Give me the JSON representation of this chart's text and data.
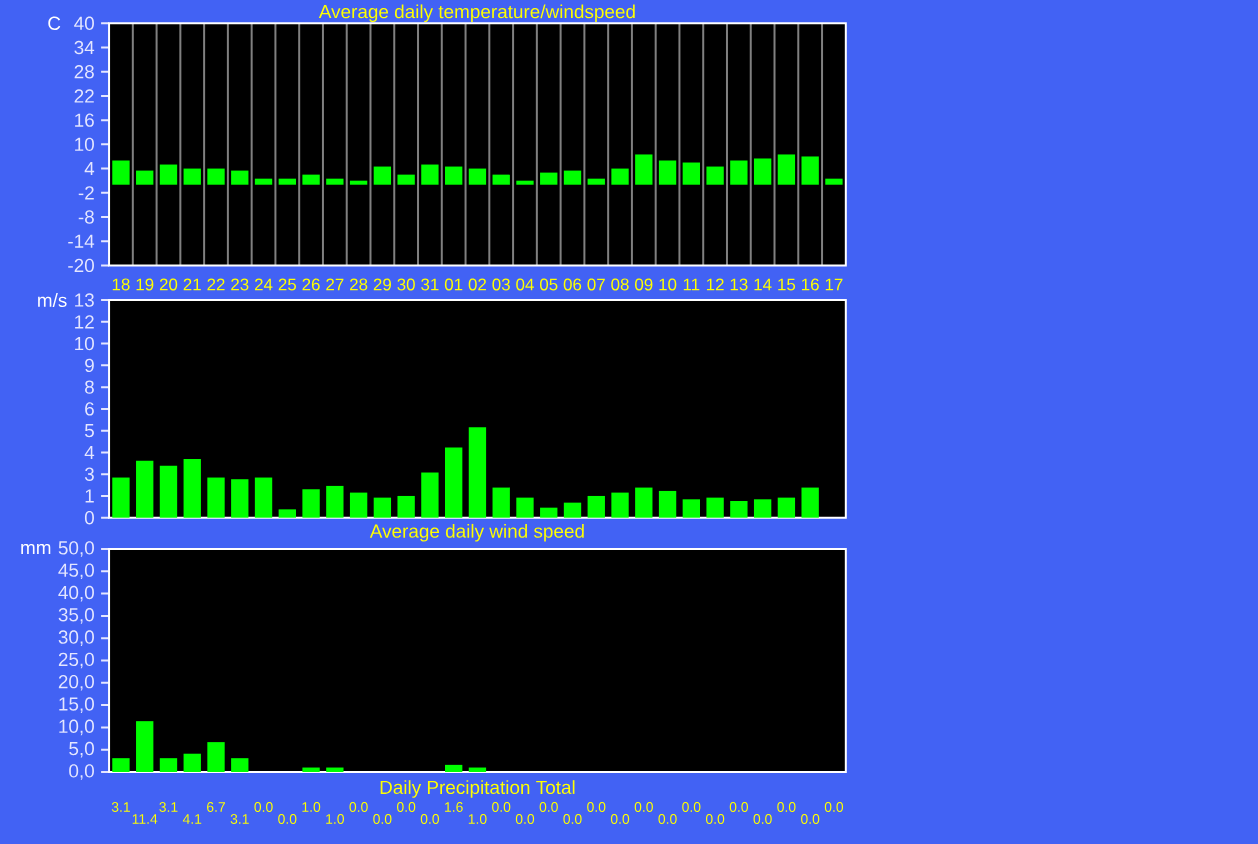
{
  "chart_data": [
    {
      "type": "bar",
      "title": "Average daily temperature/windspeed",
      "ylabel": "C",
      "categories": [
        "18",
        "19",
        "20",
        "21",
        "22",
        "23",
        "24",
        "25",
        "26",
        "27",
        "28",
        "29",
        "30",
        "31",
        "01",
        "02",
        "03",
        "04",
        "05",
        "06",
        "07",
        "08",
        "09",
        "10",
        "11",
        "12",
        "13",
        "14",
        "15",
        "16",
        "17"
      ],
      "values": [
        6.0,
        3.5,
        5.0,
        4.0,
        4.0,
        3.5,
        1.5,
        1.5,
        2.5,
        1.5,
        1.0,
        4.5,
        2.5,
        5.0,
        4.5,
        4.0,
        2.5,
        1.0,
        3.0,
        3.5,
        1.5,
        4.0,
        7.5,
        6.0,
        5.5,
        4.5,
        6.0,
        6.5,
        7.5,
        7.0,
        1.5
      ],
      "color": "#00ff00",
      "ylim": [
        -20,
        40
      ],
      "yticks": [
        -20,
        -14,
        -8,
        -2,
        4,
        10,
        16,
        22,
        28,
        34,
        40
      ],
      "grid": "x"
    },
    {
      "type": "bar",
      "title": "Average daily wind speed",
      "ylabel": "m/s",
      "categories": [
        "18",
        "19",
        "20",
        "21",
        "22",
        "23",
        "24",
        "25",
        "26",
        "27",
        "28",
        "29",
        "30",
        "31",
        "01",
        "02",
        "03",
        "04",
        "05",
        "06",
        "07",
        "08",
        "09",
        "10",
        "11",
        "12",
        "13",
        "14",
        "15",
        "16",
        "17"
      ],
      "values": [
        2.4,
        3.4,
        3.1,
        3.5,
        2.4,
        2.3,
        2.4,
        0.5,
        1.7,
        1.9,
        1.5,
        1.2,
        1.3,
        2.7,
        4.2,
        5.4,
        1.8,
        1.2,
        0.6,
        0.9,
        1.3,
        1.5,
        1.8,
        1.6,
        1.1,
        1.2,
        1.0,
        1.1,
        1.2,
        1.8,
        0
      ],
      "color": "#00ff00",
      "ylim": [
        0,
        13
      ],
      "yticks": [
        0,
        {
          "value": 1.3,
          "label": "1"
        },
        {
          "value": 2.6,
          "label": "3"
        },
        {
          "value": 3.9,
          "label": "4"
        },
        {
          "value": 5.2,
          "label": "5"
        },
        {
          "value": 6.5,
          "label": "6"
        },
        {
          "value": 7.8,
          "label": "8"
        },
        {
          "value": 9.1,
          "label": "9"
        },
        {
          "value": 10.4,
          "label": "10"
        },
        {
          "value": 11.7,
          "label": "12"
        },
        13
      ],
      "grid": "x",
      "tick_labels": "y"
    },
    {
      "type": "bar",
      "title": "Daily Precipitation Total",
      "ylabel": "mm",
      "categories": [
        "18",
        "19",
        "20",
        "21",
        "22",
        "23",
        "24",
        "25",
        "26",
        "27",
        "28",
        "29",
        "30",
        "31",
        "01",
        "02",
        "03",
        "04",
        "05",
        "06",
        "07",
        "08",
        "09",
        "10",
        "11",
        "12",
        "13",
        "14",
        "15",
        "16",
        "17"
      ],
      "values": [
        3.1,
        11.4,
        3.1,
        4.1,
        6.7,
        3.1,
        0.0,
        0.0,
        1.0,
        1.0,
        0.0,
        0.0,
        0.0,
        0.0,
        1.6,
        1.0,
        0.0,
        0.0,
        0.0,
        0.0,
        0.0,
        0.0,
        0.0,
        0.0,
        0.0,
        0.0,
        0.0,
        0.0,
        0.0,
        0.0,
        0.0
      ],
      "value_labels": [
        "3.1",
        "11.4",
        "3.1",
        "4.1",
        "6.7",
        "3.1",
        "0.0",
        "0.0",
        "1.0",
        "1.0",
        "0.0",
        "0.0",
        "0.0",
        "0.0",
        "1.6",
        "1.0",
        "0.0",
        "0.0",
        "0.0",
        "0.0",
        "0.0",
        "0.0",
        "0.0",
        "0.0",
        "0.0",
        "0.0",
        "0.0",
        "0.0",
        "0.0",
        "0.0",
        "0.0"
      ],
      "color": "#00ff00",
      "ylim": [
        0,
        50
      ],
      "yticks": [
        {
          "value": 0,
          "label": "0,0"
        },
        {
          "value": 5,
          "label": "5,0"
        },
        {
          "value": 10,
          "label": "10,0"
        },
        {
          "value": 15,
          "label": "15,0"
        },
        {
          "value": 20,
          "label": "20,0"
        },
        {
          "value": 25,
          "label": "25,0"
        },
        {
          "value": 30,
          "label": "30,0"
        },
        {
          "value": 35,
          "label": "35,0"
        },
        {
          "value": 40,
          "label": "40,0"
        },
        {
          "value": 45,
          "label": "45,0"
        },
        {
          "value": 50,
          "label": "50,0"
        }
      ],
      "grid": "x",
      "tick_labels": "y"
    }
  ]
}
